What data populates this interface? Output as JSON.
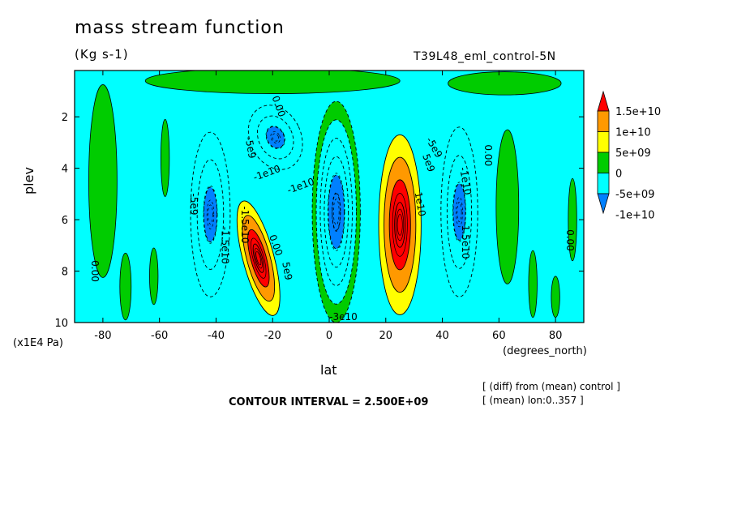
{
  "chart_data": {
    "type": "contour",
    "title": "mass stream function",
    "units": "(Kg s-1)",
    "experiment": "T39L48_eml_control-5N",
    "xlabel": "lat",
    "x_unit": "(degrees_north)",
    "ylabel": "plev",
    "y_unit": "(x1E4 Pa)",
    "xlim": [
      -90,
      90
    ],
    "ylim": [
      10,
      0.2
    ],
    "x_ticks": [
      -80,
      -60,
      -40,
      -20,
      0,
      20,
      40,
      60,
      80
    ],
    "y_ticks": [
      2,
      4,
      6,
      8,
      10
    ],
    "contour_interval_text": "CONTOUR INTERVAL = 2.500E+09",
    "notes": [
      "[ (diff) from (mean) control ]",
      "[ (mean) lon:0..357 ]"
    ],
    "colorbar": {
      "labels": [
        "1.5e+10",
        "1e+10",
        "5e+09",
        "0",
        "-5e+09",
        "-1e+10"
      ],
      "colors": [
        "#ff0000",
        "#ff9900",
        "#ffff00",
        "#00cc00",
        "#00ffff",
        "#0080ff"
      ]
    },
    "background_color": "#00ffff",
    "cells": [
      {
        "name": "sh-outer-cell",
        "lat": -42,
        "plev": 5.8,
        "w_deg": 14,
        "h_plev": 6.4,
        "max": -7500000000.0,
        "levels": 3,
        "angle": 0
      },
      {
        "name": "sh-upper-cell",
        "lat": -19,
        "plev": 2.8,
        "w_deg": 18,
        "h_plev": 2.6,
        "max": -10000000000.0,
        "levels": 3,
        "angle": -25
      },
      {
        "name": "equatorial-cell",
        "lat": 2.5,
        "plev": 5.7,
        "w_deg": 17,
        "h_plev": 8.6,
        "max": -10000000000.0,
        "levels": 6,
        "angle": 0
      },
      {
        "name": "sh-positive-cell",
        "lat": -25,
        "plev": 7.5,
        "w_deg": 11,
        "h_plev": 4.6,
        "max": 15000000000.0,
        "levels": 4,
        "angle": -15
      },
      {
        "name": "nh-positive-cell",
        "lat": 25,
        "plev": 6.2,
        "w_deg": 15,
        "h_plev": 7.0,
        "max": 15000000000.0,
        "levels": 4,
        "angle": 0
      },
      {
        "name": "nh-outer-cell",
        "lat": 46,
        "plev": 5.7,
        "w_deg": 13,
        "h_plev": 6.6,
        "max": -7500000000.0,
        "levels": 3,
        "angle": 0
      }
    ],
    "green_regions": [
      {
        "name": "green-band-top",
        "lat": -20,
        "plev": 0.6,
        "w_deg": 90,
        "h_plev": 1.0
      },
      {
        "name": "green-band-top-right",
        "lat": 62,
        "plev": 0.7,
        "w_deg": 40,
        "h_plev": 0.9
      },
      {
        "name": "green-column-left",
        "lat": -80,
        "plev": 4.5,
        "w_deg": 10,
        "h_plev": 7.5
      },
      {
        "name": "green-column-right",
        "lat": 63,
        "plev": 5.5,
        "w_deg": 8,
        "h_plev": 6.0
      },
      {
        "name": "green-blob-sh-lower",
        "lat": -72,
        "plev": 8.6,
        "w_deg": 4,
        "h_plev": 2.6
      },
      {
        "name": "green-blob-sh-mid",
        "lat": -62,
        "plev": 8.2,
        "w_deg": 3,
        "h_plev": 2.2
      },
      {
        "name": "green-blob-sh-upper",
        "lat": -58,
        "plev": 3.6,
        "w_deg": 3,
        "h_plev": 3.0
      },
      {
        "name": "green-blob-nh-lower",
        "lat": 72,
        "plev": 8.5,
        "w_deg": 3,
        "h_plev": 2.6
      },
      {
        "name": "green-blob-nh-edge",
        "lat": 86,
        "plev": 6.0,
        "w_deg": 3,
        "h_plev": 3.2
      },
      {
        "name": "green-blob-nh-bottom",
        "lat": 80,
        "plev": 9.0,
        "w_deg": 3,
        "h_plev": 1.6
      }
    ],
    "contour_labels": [
      {
        "text": "0.00",
        "lat": -18,
        "plev": 1.6,
        "angle": 70
      },
      {
        "text": "-5e9",
        "lat": -28,
        "plev": 3.2,
        "angle": 80
      },
      {
        "text": "-1e10",
        "lat": -22,
        "plev": 4.2,
        "angle": -20
      },
      {
        "text": "-1e10",
        "lat": -10,
        "plev": 4.7,
        "angle": -20
      },
      {
        "text": "-5e9",
        "lat": -48,
        "plev": 5.4,
        "angle": 90
      },
      {
        "text": "-1.5e10",
        "lat": -37,
        "plev": 7.0,
        "angle": 90
      },
      {
        "text": "0.00",
        "lat": -19,
        "plev": 7.0,
        "angle": 70
      },
      {
        "text": "5e9",
        "lat": -15,
        "plev": 8.0,
        "angle": 80
      },
      {
        "text": "-1.5e10",
        "lat": -30,
        "plev": 6.2,
        "angle": 90
      },
      {
        "text": "0.00",
        "lat": -83,
        "plev": 8.0,
        "angle": 90
      },
      {
        "text": "-3e10",
        "lat": 5,
        "plev": 9.8,
        "angle": 0
      },
      {
        "text": "5e9",
        "lat": 35,
        "plev": 3.8,
        "angle": 70
      },
      {
        "text": "1e10",
        "lat": 32,
        "plev": 5.4,
        "angle": 80
      },
      {
        "text": "-5e9",
        "lat": 37,
        "plev": 3.2,
        "angle": 60
      },
      {
        "text": "-1e10",
        "lat": 48,
        "plev": 4.5,
        "angle": 80
      },
      {
        "text": "-1.5e10",
        "lat": 48,
        "plev": 6.8,
        "angle": 90
      },
      {
        "text": "0.00",
        "lat": 56,
        "plev": 3.5,
        "angle": 90
      },
      {
        "text": "0.00",
        "lat": 85,
        "plev": 6.8,
        "angle": 90
      }
    ]
  }
}
